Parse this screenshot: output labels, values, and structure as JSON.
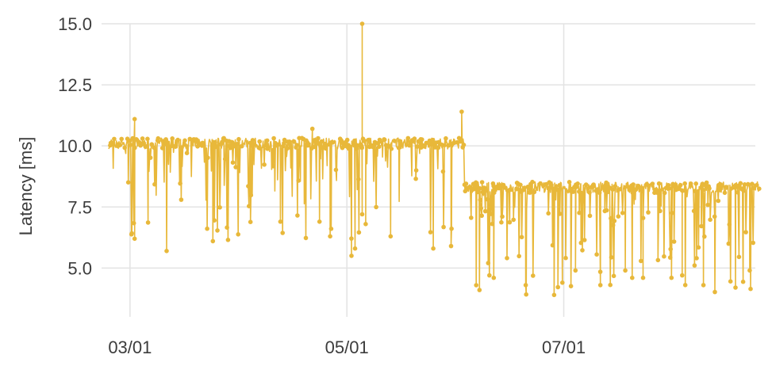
{
  "chart_data": {
    "type": "line",
    "title": "",
    "xlabel": "",
    "ylabel": "Latency [ms]",
    "xlim": [
      "2026-02-21",
      "2026-08-25"
    ],
    "ylim": [
      3.0,
      15.0
    ],
    "x_ticks": [
      {
        "date": "2026-03-01",
        "label": "03/01"
      },
      {
        "date": "2026-05-01",
        "label": "05/01"
      },
      {
        "date": "2026-07-01",
        "label": "07/01"
      }
    ],
    "y_ticks": [
      {
        "value": 5.0,
        "label": "5.0"
      },
      {
        "value": 7.5,
        "label": "7.5"
      },
      {
        "value": 10.0,
        "label": "10.0"
      },
      {
        "value": 12.5,
        "label": "12.5"
      },
      {
        "value": 15.0,
        "label": "15.0"
      }
    ],
    "grid": true,
    "series": [
      {
        "color": "#e8b83a",
        "marker": "circle",
        "segments": [
          {
            "start": "2026-02-23",
            "end": "2026-06-03",
            "typical": 10.1
          },
          {
            "start": "2026-06-03",
            "end": "2026-08-25",
            "typical": 8.3
          }
        ],
        "spikes": [
          {
            "date": "2026-03-02",
            "value": 11.1
          },
          {
            "date": "2026-03-02",
            "value": 6.2
          },
          {
            "date": "2026-03-11",
            "value": 5.7
          },
          {
            "date": "2026-03-24",
            "value": 6.1
          },
          {
            "date": "2026-04-12",
            "value": 6.9
          },
          {
            "date": "2026-04-21",
            "value": 10.7
          },
          {
            "date": "2026-04-23",
            "value": 6.9
          },
          {
            "date": "2026-04-26",
            "value": 6.3
          },
          {
            "date": "2026-05-02",
            "value": 5.5
          },
          {
            "date": "2026-05-05",
            "value": 7.2
          },
          {
            "date": "2026-05-06",
            "value": 6.8
          },
          {
            "date": "2026-05-03",
            "value": 5.8
          },
          {
            "date": "2026-05-05",
            "value": 15.0
          },
          {
            "date": "2026-05-05",
            "value": 10.5
          },
          {
            "date": "2026-05-13",
            "value": 6.3
          },
          {
            "date": "2026-05-25",
            "value": 5.8
          },
          {
            "date": "2026-05-30",
            "value": 5.9
          },
          {
            "date": "2026-06-02",
            "value": 11.4
          },
          {
            "date": "2026-06-07",
            "value": 4.1
          },
          {
            "date": "2026-06-11",
            "value": 4.6
          },
          {
            "date": "2026-06-20",
            "value": 4.3
          },
          {
            "date": "2026-06-28",
            "value": 3.9
          },
          {
            "date": "2026-07-04",
            "value": 4.9
          },
          {
            "date": "2026-07-11",
            "value": 4.3
          },
          {
            "date": "2026-07-18",
            "value": 4.9
          },
          {
            "date": "2026-07-23",
            "value": 4.6
          },
          {
            "date": "2026-07-31",
            "value": 4.6
          },
          {
            "date": "2026-08-03",
            "value": 4.7
          },
          {
            "date": "2026-08-09",
            "value": 4.3
          },
          {
            "date": "2026-08-18",
            "value": 4.2
          },
          {
            "date": "2026-08-22",
            "value": 4.9
          }
        ]
      }
    ]
  }
}
